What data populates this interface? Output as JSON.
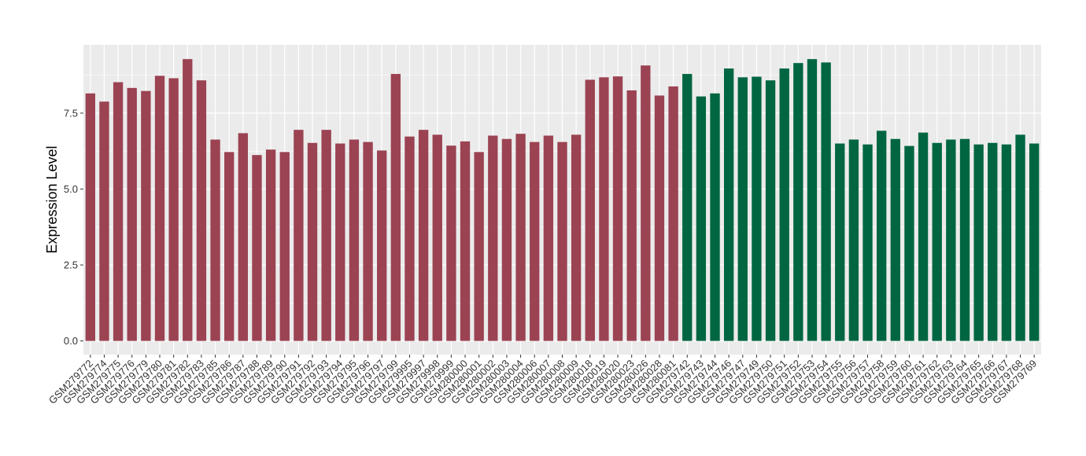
{
  "chart_data": {
    "type": "bar",
    "title": "",
    "xlabel": "",
    "ylabel": "Expression Level",
    "ylim": [
      -0.45,
      9.75
    ],
    "yticks": [
      0.0,
      2.5,
      5.0,
      7.5
    ],
    "ytick_labels": [
      "0.0",
      "2.5",
      "5.0",
      "7.5"
    ],
    "grid": true,
    "legend": "none",
    "colors": {
      "group_a": "#9B4352",
      "group_b": "#006641",
      "panel_bg": "#EBEBEB",
      "grid": "#FFFFFF"
    },
    "categories": [
      "GSM279772",
      "GSM279774",
      "GSM279775",
      "GSM279776",
      "GSM279779",
      "GSM279780",
      "GSM279781",
      "GSM279782",
      "GSM279783",
      "GSM279785",
      "GSM279786",
      "GSM279787",
      "GSM279788",
      "GSM279789",
      "GSM279790",
      "GSM279791",
      "GSM279792",
      "GSM279793",
      "GSM279794",
      "GSM279795",
      "GSM279796",
      "GSM279797",
      "GSM279799",
      "GSM279995",
      "GSM279997",
      "GSM279998",
      "GSM279999",
      "GSM280000",
      "GSM280001",
      "GSM280002",
      "GSM280003",
      "GSM280004",
      "GSM280006",
      "GSM280007",
      "GSM280008",
      "GSM280009",
      "GSM280018",
      "GSM280019",
      "GSM280020",
      "GSM280023",
      "GSM280026",
      "GSM280028",
      "GSM280081",
      "GSM279742",
      "GSM279743",
      "GSM279744",
      "GSM279746",
      "GSM279747",
      "GSM279749",
      "GSM279750",
      "GSM279751",
      "GSM279752",
      "GSM279753",
      "GSM279754",
      "GSM279755",
      "GSM279756",
      "GSM279757",
      "GSM279758",
      "GSM279759",
      "GSM279760",
      "GSM279761",
      "GSM279762",
      "GSM279763",
      "GSM279764",
      "GSM279765",
      "GSM279766",
      "GSM279767",
      "GSM279768",
      "GSM279769"
    ],
    "values": [
      8.15,
      7.88,
      8.52,
      8.33,
      8.23,
      8.73,
      8.65,
      9.28,
      8.58,
      6.63,
      6.22,
      6.84,
      6.12,
      6.3,
      6.22,
      6.95,
      6.52,
      6.95,
      6.5,
      6.63,
      6.55,
      6.27,
      8.79,
      6.73,
      6.95,
      6.79,
      6.43,
      6.57,
      6.22,
      6.76,
      6.65,
      6.82,
      6.55,
      6.76,
      6.55,
      6.79,
      8.6,
      8.68,
      8.71,
      8.25,
      9.07,
      8.08,
      8.38,
      8.79,
      8.05,
      8.15,
      8.97,
      8.68,
      8.7,
      8.58,
      8.97,
      9.15,
      9.28,
      9.17,
      6.5,
      6.63,
      6.47,
      6.92,
      6.65,
      6.42,
      6.86,
      6.52,
      6.63,
      6.65,
      6.47,
      6.52,
      6.47,
      6.79,
      6.5
    ],
    "groups": [
      "a",
      "a",
      "a",
      "a",
      "a",
      "a",
      "a",
      "a",
      "a",
      "a",
      "a",
      "a",
      "a",
      "a",
      "a",
      "a",
      "a",
      "a",
      "a",
      "a",
      "a",
      "a",
      "a",
      "a",
      "a",
      "a",
      "a",
      "a",
      "a",
      "a",
      "a",
      "a",
      "a",
      "a",
      "a",
      "a",
      "a",
      "a",
      "a",
      "a",
      "a",
      "a",
      "a",
      "b",
      "b",
      "b",
      "b",
      "b",
      "b",
      "b",
      "b",
      "b",
      "b",
      "b",
      "b",
      "b",
      "b",
      "b",
      "b",
      "b",
      "b",
      "b",
      "b",
      "b",
      "b",
      "b",
      "b",
      "b",
      "b"
    ]
  }
}
